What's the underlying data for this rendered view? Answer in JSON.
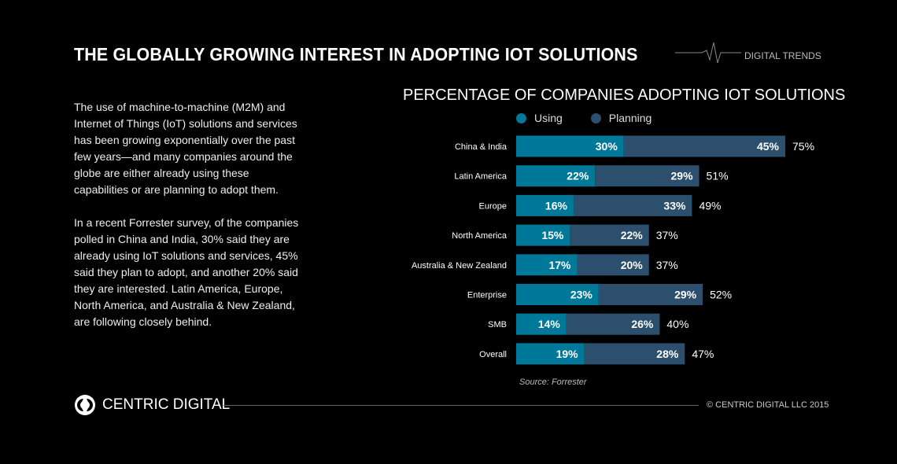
{
  "header": {
    "title": "THE GLOBALLY GROWING INTEREST IN ADOPTING IOT SOLUTIONS",
    "tag": "DIGITAL TRENDS"
  },
  "body": {
    "p1": "The use of machine-to-machine (M2M) and Internet of Things (IoT) solutions and services has been growing exponentially over the past few years—and many companies around the globe are either already using these capabilities or are planning to adopt them.",
    "p2": "In a recent Forrester survey, of the companies polled in China and India, 30% said they are already using IoT solutions and services, 45% said they plan to adopt, and another 20% said they are interested. Latin America, Europe, North America, and Australia & New Zealand, are following closely behind."
  },
  "chart_data": {
    "type": "bar",
    "orientation": "horizontal",
    "stacked": true,
    "title": "PERCENTAGE OF COMPANIES ADOPTING IOT SOLUTIONS",
    "categories": [
      "China & India",
      "Latin America",
      "Europe",
      "North America",
      "Australia & New Zealand",
      "Enterprise",
      "SMB",
      "Overall"
    ],
    "series": [
      {
        "name": "Using",
        "color": "#00789a",
        "values": [
          30,
          22,
          16,
          15,
          17,
          23,
          14,
          19
        ]
      },
      {
        "name": "Planning",
        "color": "#2b4f6c",
        "values": [
          45,
          29,
          33,
          22,
          20,
          29,
          26,
          28
        ]
      }
    ],
    "totals": [
      75,
      51,
      49,
      37,
      37,
      52,
      40,
      47
    ],
    "xlim": [
      0,
      75
    ],
    "grid": false,
    "legend": "top",
    "source": "Source:  Forrester"
  },
  "footer": {
    "brand": "CENTRIC DIGITAL",
    "copyright": "© CENTRIC DIGITAL LLC 2015"
  }
}
